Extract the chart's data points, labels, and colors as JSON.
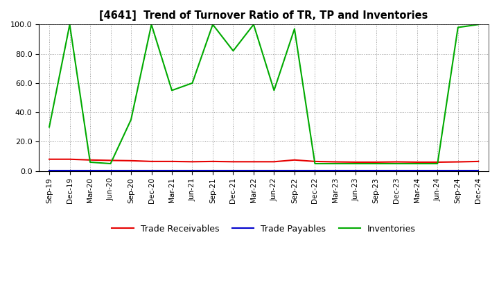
{
  "title": "[4641]  Trend of Turnover Ratio of TR, TP and Inventories",
  "x_labels": [
    "Sep-19",
    "Dec-19",
    "Mar-20",
    "Jun-20",
    "Sep-20",
    "Dec-20",
    "Mar-21",
    "Jun-21",
    "Sep-21",
    "Dec-21",
    "Mar-22",
    "Jun-22",
    "Sep-22",
    "Dec-22",
    "Mar-23",
    "Jun-23",
    "Sep-23",
    "Dec-23",
    "Mar-24",
    "Jun-24",
    "Sep-24",
    "Dec-24"
  ],
  "trade_receivables": [
    8.0,
    8.0,
    7.5,
    7.2,
    7.0,
    6.5,
    6.5,
    6.3,
    6.5,
    6.3,
    6.3,
    6.3,
    7.5,
    6.5,
    6.2,
    6.0,
    6.0,
    6.2,
    6.0,
    6.0,
    6.2,
    6.5
  ],
  "trade_payables": [
    0.5,
    0.5,
    0.5,
    0.5,
    0.5,
    0.5,
    0.5,
    0.5,
    0.5,
    0.5,
    0.5,
    0.5,
    0.5,
    0.5,
    0.5,
    0.5,
    0.5,
    0.5,
    0.5,
    0.5,
    0.5,
    0.5
  ],
  "inventories": [
    30.0,
    100.0,
    6.0,
    5.0,
    35.0,
    100.0,
    55.0,
    60.0,
    100.0,
    82.0,
    100.0,
    55.0,
    97.0,
    5.0,
    5.0,
    5.0,
    5.0,
    5.0,
    5.0,
    5.0,
    98.0,
    100.0
  ],
  "ylim": [
    0.0,
    100.0
  ],
  "yticks": [
    0.0,
    20.0,
    40.0,
    60.0,
    80.0,
    100.0
  ],
  "color_tr": "#e60000",
  "color_tp": "#0000cc",
  "color_inv": "#00aa00",
  "legend_labels": [
    "Trade Receivables",
    "Trade Payables",
    "Inventories"
  ],
  "background_color": "#ffffff",
  "grid_color": "#999999"
}
